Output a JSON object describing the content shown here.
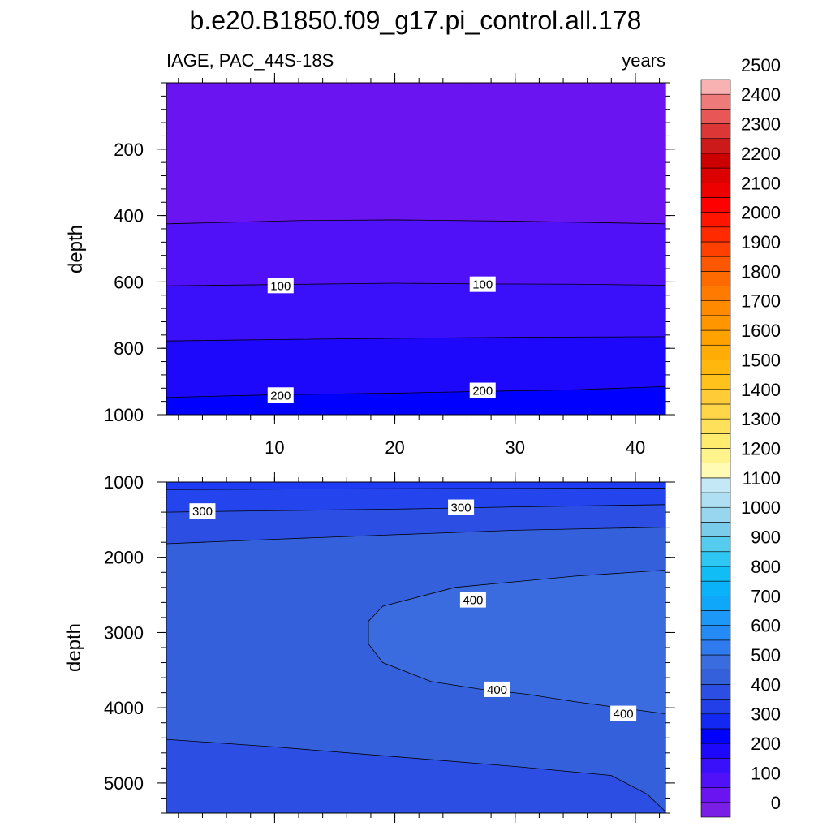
{
  "chart_data": {
    "type": "contour",
    "title": "b.e20.B1850.f09_g17.pi_control.all.178",
    "left_string": "IAGE, PAC_44S-18S",
    "right_string": "years",
    "xlabel": "",
    "ylabel": "depth",
    "x_range": [
      1,
      42.5
    ],
    "x_ticks": [
      10,
      20,
      30,
      40
    ],
    "panels": [
      {
        "name": "upper",
        "ylabel": "depth",
        "y_range": [
          0,
          1000
        ],
        "y_ticks": [
          200,
          400,
          600,
          800,
          1000
        ],
        "contour_lines": [
          {
            "level": 50,
            "x": [
              1,
              12,
              20,
              30,
              42.5
            ],
            "y": [
              425,
              415,
              413,
              417,
              425
            ]
          },
          {
            "level": 100,
            "x": [
              1,
              10,
              20,
              27,
              35,
              42.5
            ],
            "y": [
              612,
              608,
              604,
              606,
              607,
              610
            ]
          },
          {
            "level": 150,
            "x": [
              1,
              12,
              20,
              30,
              42.5
            ],
            "y": [
              778,
              773,
              770,
              767,
              765
            ]
          },
          {
            "level": 200,
            "x": [
              1,
              10,
              20,
              27,
              35,
              42.5
            ],
            "y": [
              948,
              940,
              935,
              930,
              925,
              915
            ]
          }
        ],
        "labels": [
          {
            "text": "100",
            "x": 10.5,
            "y": 612
          },
          {
            "text": "100",
            "x": 27.3,
            "y": 608
          },
          {
            "text": "200",
            "x": 10.5,
            "y": 942
          },
          {
            "text": "200",
            "x": 27.3,
            "y": 928
          }
        ]
      },
      {
        "name": "lower",
        "ylabel": "depth",
        "y_range": [
          1000,
          5400
        ],
        "y_ticks": [
          1000,
          2000,
          3000,
          4000,
          5000
        ],
        "contour_lines": [
          {
            "level": 250,
            "x": [
              1,
              15,
              30,
              42.5
            ],
            "y": [
              1100,
              1090,
              1085,
              1080
            ]
          },
          {
            "level": 300,
            "x": [
              1,
              10,
              20,
              30,
              42.5
            ],
            "y": [
              1400,
              1380,
              1360,
              1330,
              1300
            ]
          },
          {
            "level": 350,
            "x": [
              1,
              10,
              20,
              30,
              42.5
            ],
            "y": [
              1820,
              1760,
              1700,
              1640,
              1600
            ]
          },
          {
            "level": 400,
            "x": [
              42.5,
              35,
              25,
              19,
              17.8,
              17.8,
              19,
              23,
              27,
              31,
              35,
              42.5
            ],
            "y": [
              2170,
              2250,
              2400,
              2650,
              2850,
              3150,
              3400,
              3650,
              3750,
              3820,
              3920,
              4080
            ]
          },
          {
            "level": 350,
            "x": [
              1,
              10,
              20,
              30,
              38,
              41,
              42.5
            ],
            "y": [
              4420,
              4520,
              4650,
              4780,
              4900,
              5150,
              5380
            ]
          }
        ],
        "labels": [
          {
            "text": "300",
            "x": 4,
            "y": 1390
          },
          {
            "text": "300",
            "x": 25.5,
            "y": 1340
          },
          {
            "text": "400",
            "x": 26.5,
            "y": 2570
          },
          {
            "text": "400",
            "x": 28.5,
            "y": 3760
          },
          {
            "text": "400",
            "x": 39,
            "y": 4080
          }
        ]
      }
    ],
    "colorbar": {
      "labels": [
        "0",
        "100",
        "200",
        "300",
        "400",
        "500",
        "600",
        "700",
        "800",
        "900",
        "1000",
        "1100",
        "1200",
        "1300",
        "1400",
        "1500",
        "1600",
        "1700",
        "1800",
        "1900",
        "2000",
        "2100",
        "2200",
        "2300",
        "2400",
        "2500"
      ],
      "colors": [
        "#7A1FE6",
        "#6A14F2",
        "#5010F8",
        "#3A0FFA",
        "#1E08FC",
        "#0000FF",
        "#1428F4",
        "#2340E8",
        "#2C4EE2",
        "#3560DC",
        "#3A6CE0",
        "#2F7BEF",
        "#248AF5",
        "#1C98F8",
        "#0FA7FA",
        "#0AB2FA",
        "#10BDF4",
        "#2EC6F2",
        "#55CBEE",
        "#79CDEA",
        "#97D6EE",
        "#AEDFF2",
        "#C4E8F6",
        "#FFFAB4",
        "#FFF48C",
        "#FFEB6E",
        "#FFE05A",
        "#FFD648",
        "#FFCC38",
        "#FFC21C",
        "#FFB70E",
        "#FFAD05",
        "#FFA200",
        "#FF9600",
        "#FF8A00",
        "#FF7A00",
        "#FF6A00",
        "#FF5600",
        "#FF4000",
        "#FF2A00",
        "#FF1500",
        "#FF0000",
        "#EE0000",
        "#DD0000",
        "#CC0000",
        "#CC1A1A",
        "#DD3636",
        "#E85656",
        "#EF7A7A",
        "#F8B2B2"
      ]
    },
    "fills": {
      "upper": [
        "#6A14F2",
        "#5010F8",
        "#3A0FFA",
        "#1E08FC",
        "#0000FF",
        "#1428F4"
      ],
      "lower": [
        "#1E3CF4",
        "#2444EE",
        "#2C4EE2",
        "#3560DC",
        "#3A6CE0",
        "#2C4EE2"
      ]
    }
  }
}
